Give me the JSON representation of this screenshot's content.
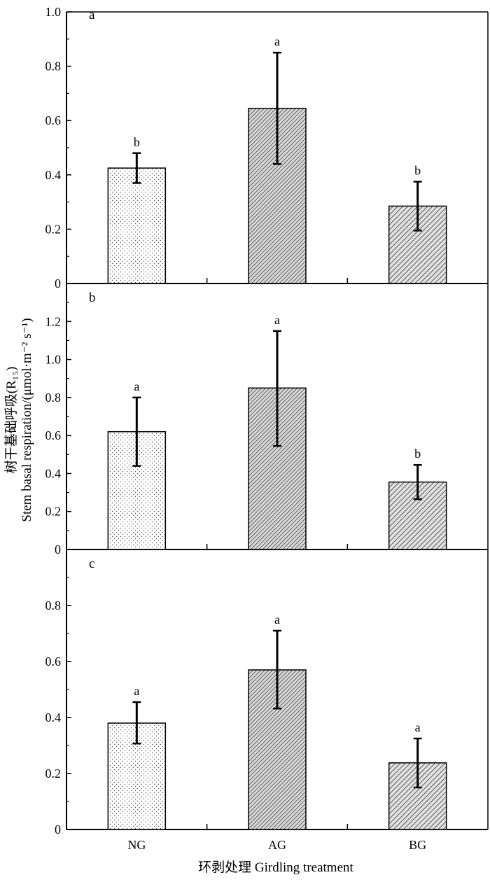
{
  "ylabel_cn": "树干基础呼吸(R₁₅)",
  "ylabel_en": "Stem basal respiration/(μmol·m⁻² s⁻¹)",
  "xlabel": "环剥处理 Girdling treatment",
  "chart_data": [
    {
      "type": "bar",
      "panel_label": "a",
      "categories": [
        "NG",
        "AG",
        "BG"
      ],
      "values": [
        0.425,
        0.645,
        0.285
      ],
      "error_low": [
        0.37,
        0.44,
        0.195
      ],
      "error_high": [
        0.48,
        0.85,
        0.375
      ],
      "significance": [
        "b",
        "a",
        "b"
      ],
      "ylim": [
        0,
        1.0
      ],
      "yticks": [
        0,
        0.2,
        0.4,
        0.6,
        0.8,
        1.0
      ],
      "ytick_labels": [
        "0",
        "0.2",
        "0.4",
        "0.6",
        "0.8",
        "1.0"
      ]
    },
    {
      "type": "bar",
      "panel_label": "b",
      "categories": [
        "NG",
        "AG",
        "BG"
      ],
      "values": [
        0.62,
        0.85,
        0.355
      ],
      "error_low": [
        0.44,
        0.545,
        0.265
      ],
      "error_high": [
        0.8,
        1.15,
        0.445
      ],
      "significance": [
        "a",
        "a",
        "b"
      ],
      "ylim": [
        0,
        1.4
      ],
      "yticks": [
        0,
        0.2,
        0.4,
        0.6,
        0.8,
        1.0,
        1.2
      ],
      "ytick_labels": [
        "0",
        "0.2",
        "0.4",
        "0.6",
        "0.8",
        "1.0",
        "1.2"
      ]
    },
    {
      "type": "bar",
      "panel_label": "c",
      "categories": [
        "NG",
        "AG",
        "BG"
      ],
      "values": [
        0.38,
        0.57,
        0.238
      ],
      "error_low": [
        0.307,
        0.432,
        0.15
      ],
      "error_high": [
        0.455,
        0.71,
        0.325
      ],
      "significance": [
        "a",
        "a",
        "a"
      ],
      "ylim": [
        0,
        1.0
      ],
      "yticks": [
        0,
        0.2,
        0.4,
        0.6,
        0.8
      ],
      "ytick_labels": [
        "0",
        "0.2",
        "0.4",
        "0.6",
        "0.8"
      ]
    }
  ],
  "bar_patterns": [
    "dots",
    "dense-hatch",
    "hatch"
  ]
}
